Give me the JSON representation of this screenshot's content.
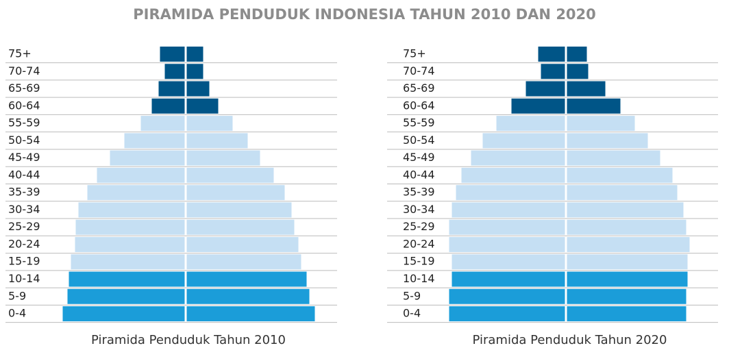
{
  "title": "PIRAMIDA PENDUDUK INDONESIA TAHUN 2010 DAN 2020",
  "chart_data": [
    {
      "type": "pyramid",
      "title": "Piramida Penduduk Tahun 2010",
      "categories": [
        "75+",
        "70-74",
        "65-69",
        "60-64",
        "55-59",
        "50-54",
        "45-49",
        "40-44",
        "35-39",
        "30-34",
        "25-29",
        "20-24",
        "15-19",
        "10-14",
        "5-9",
        "0-4"
      ],
      "colors": [
        "#005587",
        "#005587",
        "#005587",
        "#005587",
        "#c5dff3",
        "#c5dff3",
        "#c5dff3",
        "#c5dff3",
        "#c5dff3",
        "#c5dff3",
        "#c5dff3",
        "#c5dff3",
        "#c5dff3",
        "#1b9dd9",
        "#1b9dd9",
        "#1b9dd9"
      ],
      "series": [
        {
          "values": [
            36,
            29,
            38,
            48,
            64,
            88,
            109,
            128,
            142,
            155,
            159,
            160,
            166,
            169,
            171,
            178
          ]
        },
        {
          "values": [
            24,
            24,
            33,
            46,
            67,
            89,
            107,
            127,
            143,
            153,
            157,
            163,
            167,
            175,
            179,
            187
          ]
        }
      ]
    },
    {
      "type": "pyramid",
      "title": "Piramida Penduduk Tahun 2020",
      "categories": [
        "75+",
        "70-74",
        "65-69",
        "60-64",
        "55-59",
        "50-54",
        "45-49",
        "40-44",
        "35-39",
        "30-34",
        "25-29",
        "20-24",
        "15-19",
        "10-14",
        "5-9",
        "0-4"
      ],
      "colors": [
        "#005587",
        "#005587",
        "#005587",
        "#005587",
        "#c5dff3",
        "#c5dff3",
        "#c5dff3",
        "#c5dff3",
        "#c5dff3",
        "#c5dff3",
        "#c5dff3",
        "#c5dff3",
        "#c5dff3",
        "#1b9dd9",
        "#1b9dd9",
        "#1b9dd9"
      ],
      "series": [
        {
          "values": [
            39,
            35,
            57,
            78,
            100,
            120,
            137,
            151,
            159,
            165,
            169,
            169,
            165,
            165,
            169,
            169
          ]
        },
        {
          "values": [
            29,
            31,
            56,
            78,
            99,
            118,
            136,
            154,
            161,
            170,
            174,
            179,
            176,
            176,
            174,
            174
          ]
        }
      ]
    }
  ]
}
